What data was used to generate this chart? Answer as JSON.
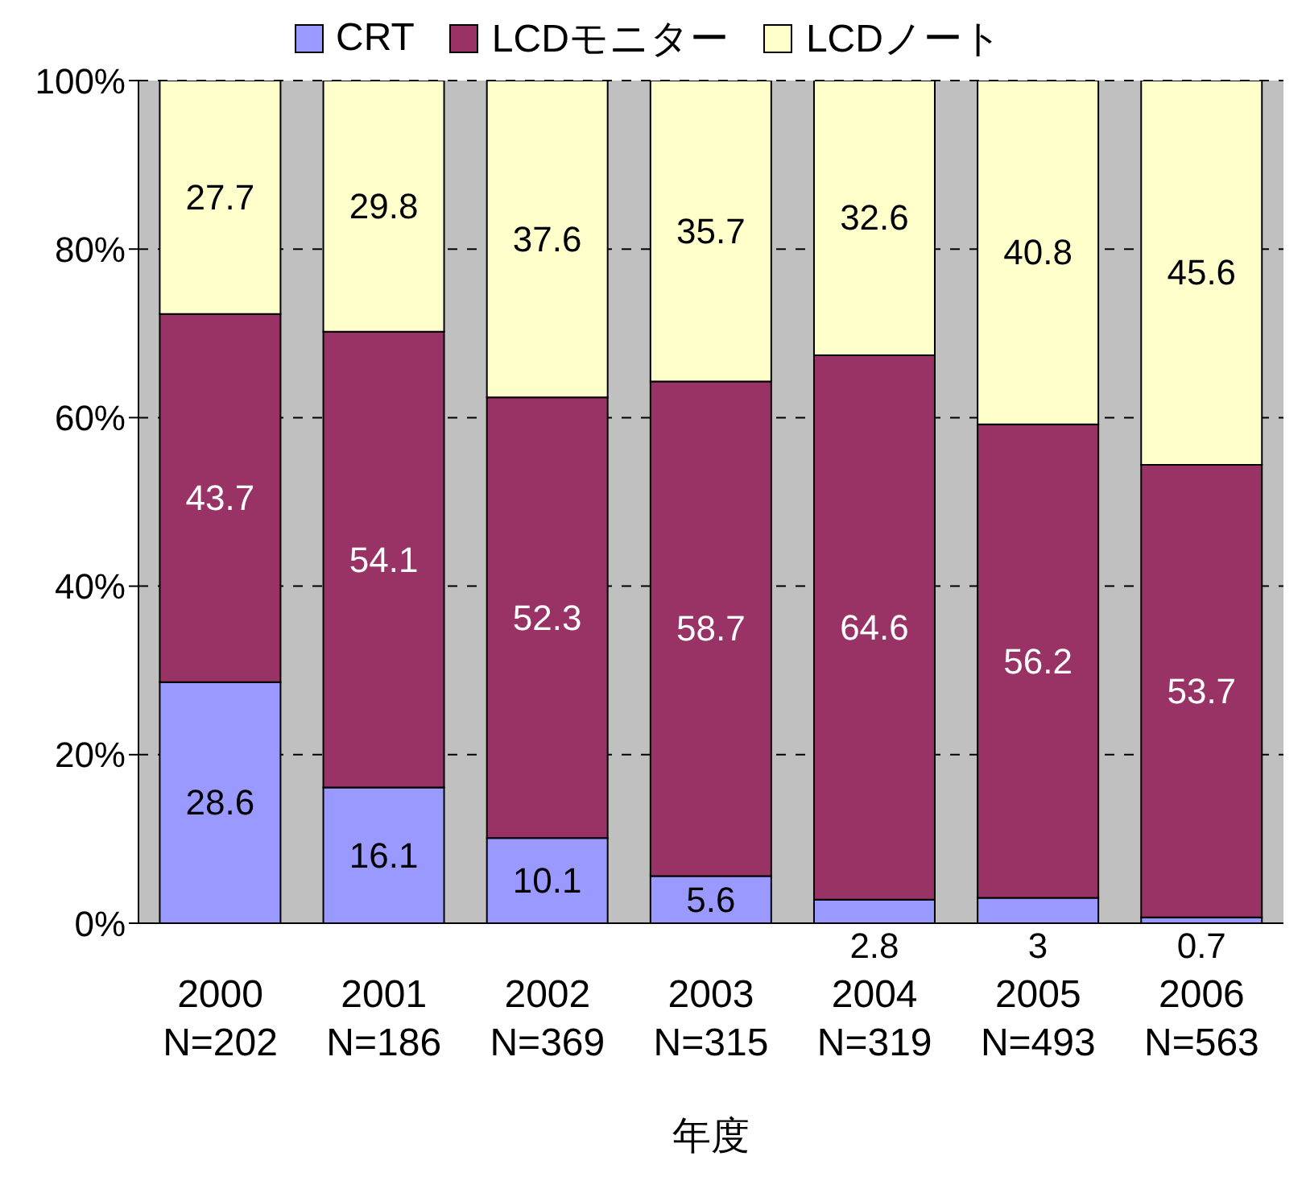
{
  "chart_data": {
    "type": "bar",
    "stacked": true,
    "xlabel": "年度",
    "categories": [
      "2000\nN=202",
      "2001\nN=186",
      "2002\nN=369",
      "2003\nN=315",
      "2004\nN=319",
      "2005\nN=493",
      "2006\nN=563"
    ],
    "series": [
      {
        "name": "CRT",
        "color": "#9999ff",
        "values": [
          28.6,
          16.1,
          10.1,
          5.6,
          2.8,
          3,
          0.7
        ]
      },
      {
        "name": "LCDモニター",
        "color": "#993366",
        "values": [
          43.7,
          54.1,
          52.3,
          58.7,
          64.6,
          56.2,
          53.7
        ]
      },
      {
        "name": "LCDノート",
        "color": "#ffffcc",
        "values": [
          27.7,
          29.8,
          37.6,
          35.7,
          32.6,
          40.8,
          45.6
        ]
      }
    ],
    "ylim": [
      0,
      100
    ],
    "yticks": [
      {
        "value": 0,
        "label": "0%"
      },
      {
        "value": 20,
        "label": "20%"
      },
      {
        "value": 40,
        "label": "40%"
      },
      {
        "value": 60,
        "label": "60%"
      },
      {
        "value": 80,
        "label": "80%"
      },
      {
        "value": 100,
        "label": "100%"
      }
    ],
    "grid": "y",
    "legend": "top",
    "data_labels": true
  }
}
